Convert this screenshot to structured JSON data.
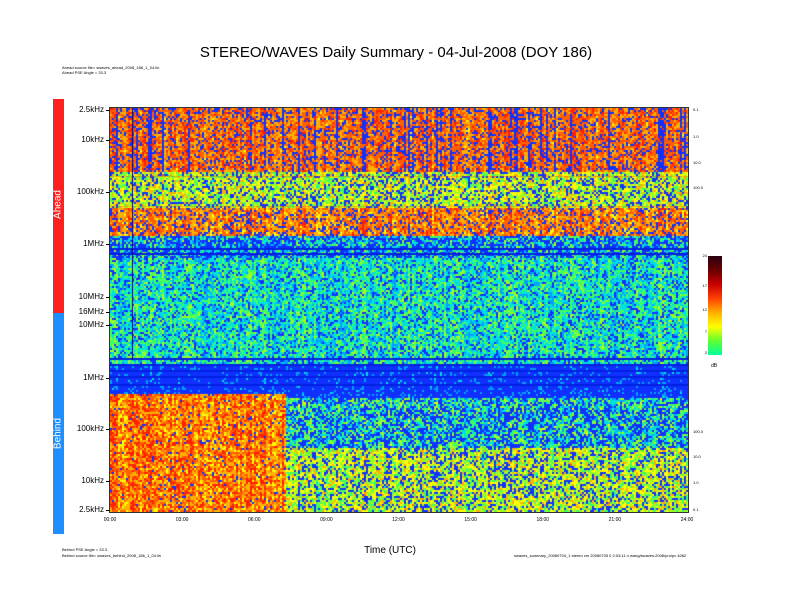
{
  "title": "STEREO/WAVES Daily Summary - 04-Jul-2008 (DOY 186)",
  "header_left": {
    "line1": "Ahead source file= swaves_ahead_2008_186_1_04.lin",
    "line2": "Ahead PSE Angle = 33.3"
  },
  "footer_left": {
    "line1": "Behind PSE Angle = 33.3",
    "line2": "Behind source file= swaves_behind_2008_186_1_04.lin"
  },
  "footer_right": "swaves_summary_20080704_1 stereo cm 20080705 0 2:03:11 n wang/swaves:2008/pro/pc 4062",
  "bars": {
    "ahead_label": "Ahead",
    "behind_label": "Behind",
    "ahead_color": "#ff2020",
    "behind_color": "#1f8fff"
  },
  "colorbar": {
    "ticks": [
      "24",
      "17",
      "12",
      "7",
      "2"
    ],
    "unit": "dB",
    "colors": [
      "#2a0010",
      "#6b0000",
      "#c80000",
      "#ff4000",
      "#ffb000",
      "#ffff00",
      "#60ff30",
      "#00ffa0"
    ]
  },
  "chart_data": {
    "type": "heatmap",
    "title": "STEREO/WAVES Daily Summary - 04-Jul-2008 (DOY 186)",
    "xlabel": "Time (UTC)",
    "x_ticks": [
      "00:00",
      "03:00",
      "06:00",
      "09:00",
      "12:00",
      "15:00",
      "18:00",
      "21:00",
      "24:00"
    ],
    "x_range": [
      "00:00",
      "24:00"
    ],
    "panels": [
      {
        "name": "Ahead",
        "y_ticks_left": [
          "2.5kHz",
          "10kHz",
          "100kHz",
          "1MHz",
          "10MHz",
          "16MHz"
        ],
        "y_ticks_right": [
          "0.1",
          "1.0",
          "10.0",
          "100.0"
        ]
      },
      {
        "name": "Behind",
        "y_ticks_left": [
          "10MHz",
          "1MHz",
          "100kHz",
          "10kHz",
          "2.5kHz"
        ],
        "y_ticks_right": [
          "100.0",
          "10.0",
          "1.0",
          "0.1"
        ]
      }
    ],
    "z_unit": "dB",
    "z_range": [
      2,
      24
    ]
  }
}
